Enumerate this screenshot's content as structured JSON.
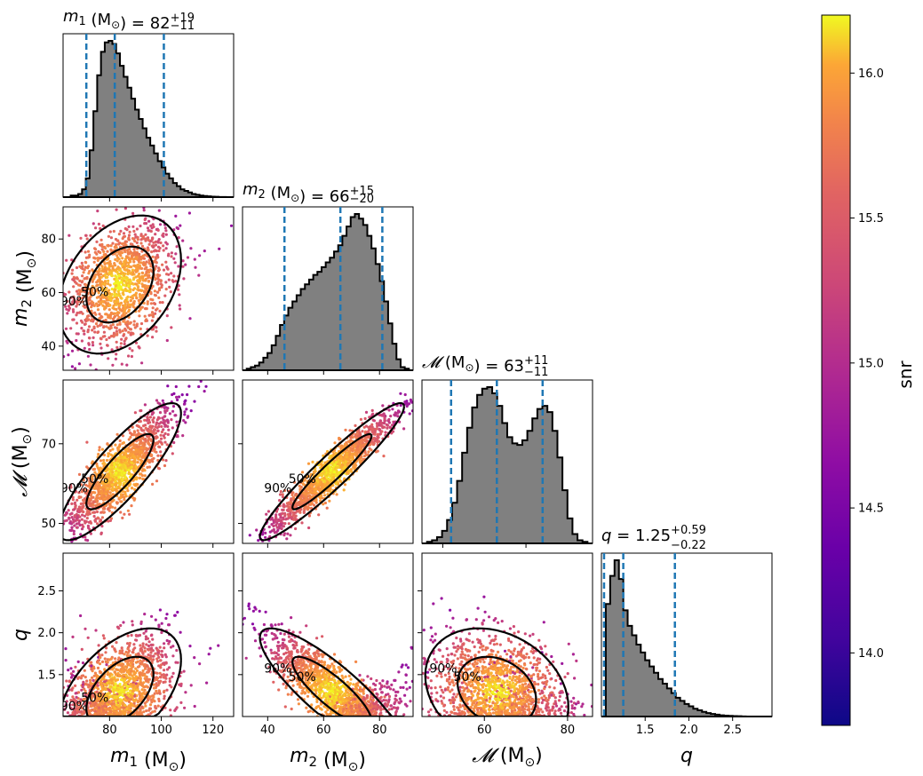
{
  "chart_data": {
    "type": "corner",
    "parameters": [
      {
        "key": "m1",
        "label_sym": "m",
        "label_sub": "1",
        "label_unit": " (M",
        "label_unit_sub": "⊙",
        "label_close": ")",
        "range": [
          62,
          128
        ],
        "ticks": [
          80,
          100,
          120
        ],
        "title": {
          "prefix_sym": "m",
          "prefix_sub": "1",
          "prefix_text": " (M",
          "prefix_unit_sub": "⊙",
          "prefix_close": ") = ",
          "median": "82",
          "plus": "+19",
          "minus": "−11"
        },
        "median": 82,
        "lower": 71,
        "upper": 101,
        "hist": [
          0.0,
          0.0,
          0.01,
          0.01,
          0.02,
          0.05,
          0.12,
          0.3,
          0.55,
          0.78,
          0.93,
          0.99,
          1.0,
          0.98,
          0.92,
          0.84,
          0.77,
          0.7,
          0.63,
          0.56,
          0.5,
          0.44,
          0.38,
          0.33,
          0.28,
          0.23,
          0.19,
          0.15,
          0.12,
          0.09,
          0.07,
          0.05,
          0.04,
          0.03,
          0.02,
          0.015,
          0.01,
          0.007,
          0.005,
          0.003,
          0.002,
          0.001,
          0.001,
          0.0,
          0.0
        ]
      },
      {
        "key": "m2",
        "label_sym": "m",
        "label_sub": "2",
        "label_unit": " (M",
        "label_unit_sub": "⊙",
        "label_close": ")",
        "range": [
          31,
          92
        ],
        "ticks": [
          40,
          60,
          80
        ],
        "title": {
          "prefix_sym": "m",
          "prefix_sub": "2",
          "prefix_text": " (M",
          "prefix_unit_sub": "⊙",
          "prefix_close": ") = ",
          "median": "66",
          "plus": "+15",
          "minus": "−20"
        },
        "median": 66,
        "lower": 46,
        "upper": 81,
        "hist": [
          0.0,
          0.01,
          0.02,
          0.03,
          0.05,
          0.08,
          0.11,
          0.16,
          0.22,
          0.29,
          0.35,
          0.4,
          0.44,
          0.48,
          0.52,
          0.55,
          0.58,
          0.61,
          0.63,
          0.66,
          0.69,
          0.72,
          0.76,
          0.8,
          0.86,
          0.92,
          0.98,
          1.0,
          0.97,
          0.93,
          0.86,
          0.78,
          0.68,
          0.57,
          0.44,
          0.3,
          0.17,
          0.07,
          0.02,
          0.01,
          0.0
        ]
      },
      {
        "key": "mc",
        "label_sym": "𝓜",
        "label_sub": "",
        "label_unit": " (M",
        "label_unit_sub": "⊙",
        "label_close": ")",
        "range": [
          45,
          86
        ],
        "ticks": [
          50,
          70
        ],
        "tick_labels_x": [
          60,
          80
        ],
        "title": {
          "prefix_sym": "𝓜",
          "prefix_sub": "",
          "prefix_text": " (M",
          "prefix_unit_sub": "⊙",
          "prefix_close": ") = ",
          "median": "63",
          "plus": "+11",
          "minus": "−11"
        },
        "median": 63,
        "lower": 52,
        "upper": 74,
        "hist": [
          0.0,
          0.01,
          0.02,
          0.04,
          0.08,
          0.15,
          0.26,
          0.4,
          0.58,
          0.74,
          0.87,
          0.95,
          0.99,
          1.0,
          0.96,
          0.88,
          0.77,
          0.68,
          0.64,
          0.63,
          0.66,
          0.72,
          0.8,
          0.86,
          0.88,
          0.84,
          0.72,
          0.55,
          0.34,
          0.16,
          0.06,
          0.02,
          0.01,
          0.0
        ]
      },
      {
        "key": "q",
        "label_sym": "q",
        "label_sub": "",
        "label_unit": "",
        "label_unit_sub": "",
        "label_close": "",
        "range": [
          1.0,
          2.95
        ],
        "ticks": [
          1.5,
          2.0,
          2.5
        ],
        "title": {
          "prefix_sym": "q",
          "prefix_sub": "",
          "prefix_text": " = ",
          "prefix_unit_sub": "",
          "prefix_close": "",
          "median": "1.25",
          "plus": "+0.59",
          "minus": "−0.22"
        },
        "median": 1.25,
        "lower": 1.03,
        "upper": 1.84,
        "hist": [
          0.0,
          0.72,
          0.9,
          1.0,
          0.88,
          0.68,
          0.58,
          0.52,
          0.46,
          0.41,
          0.36,
          0.32,
          0.28,
          0.24,
          0.21,
          0.18,
          0.15,
          0.12,
          0.1,
          0.08,
          0.065,
          0.05,
          0.04,
          0.03,
          0.022,
          0.016,
          0.012,
          0.008,
          0.006,
          0.004,
          0.003,
          0.002,
          0.001,
          0.0,
          0.0,
          0.0,
          0.0,
          0.0,
          0.0
        ]
      }
    ],
    "y_ticks": {
      "m2": [
        40,
        60,
        80
      ],
      "mc": [
        50,
        70
      ],
      "q": [
        1.5,
        2.0,
        2.5
      ]
    },
    "contour_levels": [
      "50%",
      "90%"
    ],
    "colorbar": {
      "label": "snr",
      "range": [
        13.75,
        16.2
      ],
      "ticks": [
        14.0,
        14.5,
        15.0,
        15.5,
        16.0
      ],
      "tick_labels": [
        "14.0",
        "14.5",
        "15.0",
        "15.5",
        "16.0"
      ],
      "colormap": "plasma"
    },
    "hist_color": "#808080",
    "quantile_line_color": "#1f77b4",
    "contour_color": "#000000"
  }
}
